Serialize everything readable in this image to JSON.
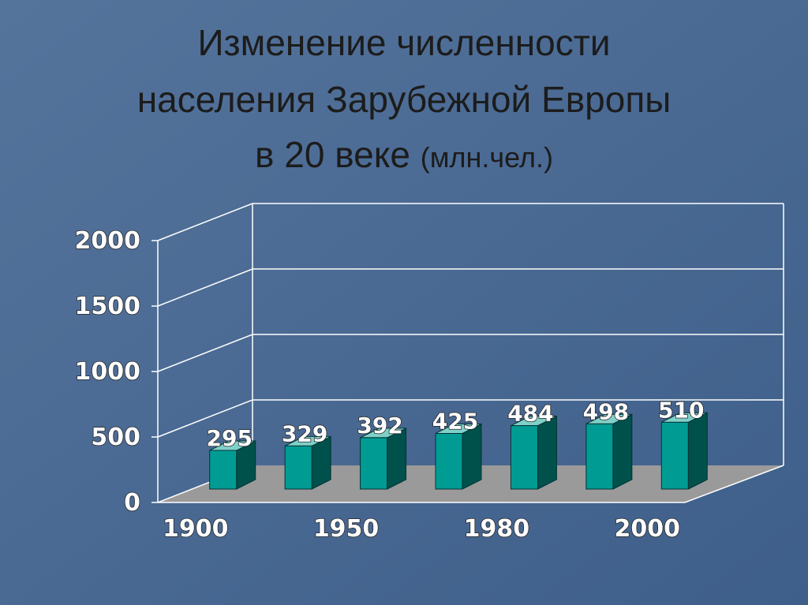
{
  "chart_data": {
    "type": "bar3d",
    "title": [
      "Изменение численности",
      "населения Зарубежной Европы",
      "в 20 веке"
    ],
    "subtitle": "(млн.чел.)",
    "categories": [
      "1900",
      null,
      "1950",
      null,
      "1980",
      null,
      "2000"
    ],
    "values": [
      295,
      329,
      392,
      425,
      484,
      498,
      510
    ],
    "color": "#009c94",
    "ylim": [
      0,
      2000
    ],
    "yticks": [
      0,
      500,
      1000,
      1500,
      2000
    ],
    "grid": true
  }
}
